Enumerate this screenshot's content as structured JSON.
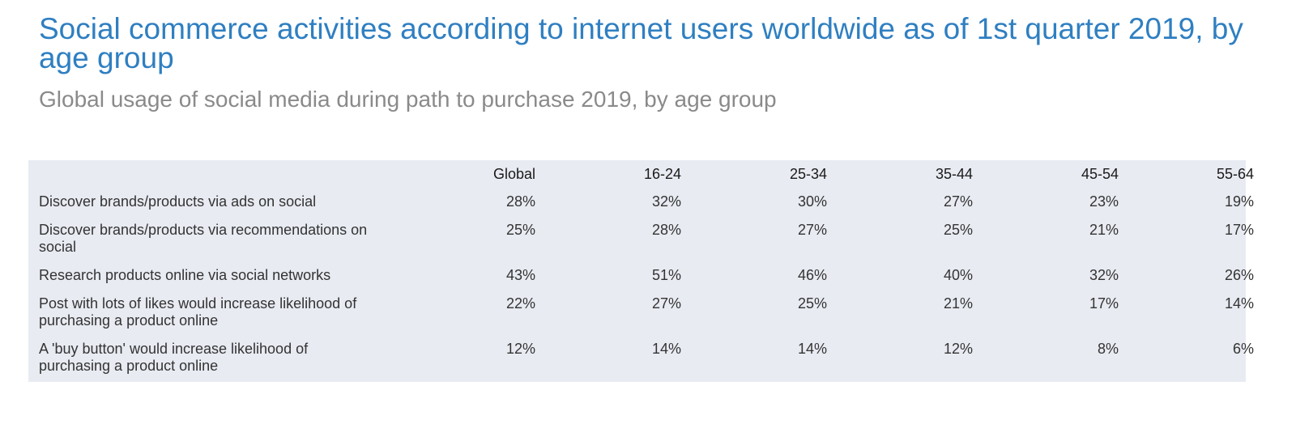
{
  "title": "Social commerce activities according to internet users worldwide as of 1st quarter 2019, by age group",
  "subtitle": "Global usage of social media during path to purchase 2019, by age group",
  "chart_data": {
    "type": "table",
    "columns": [
      "Global",
      "16-24",
      "25-34",
      "35-44",
      "45-54",
      "55-64"
    ],
    "rows": [
      {
        "label": "Discover brands/products via ads on social",
        "values": [
          "28%",
          "32%",
          "30%",
          "27%",
          "23%",
          "19%"
        ]
      },
      {
        "label": "Discover brands/products via recommendations on social",
        "values": [
          "25%",
          "28%",
          "27%",
          "25%",
          "21%",
          "17%"
        ]
      },
      {
        "label": "Research products online via social networks",
        "values": [
          "43%",
          "51%",
          "46%",
          "40%",
          "32%",
          "26%"
        ]
      },
      {
        "label": "Post with lots of likes would increase likelihood of purchasing a product online",
        "values": [
          "22%",
          "27%",
          "25%",
          "21%",
          "17%",
          "14%"
        ]
      },
      {
        "label": "A 'buy button' would increase likelihood of purchasing a product online",
        "values": [
          "12%",
          "14%",
          "14%",
          "12%",
          "8%",
          "6%"
        ]
      }
    ]
  }
}
